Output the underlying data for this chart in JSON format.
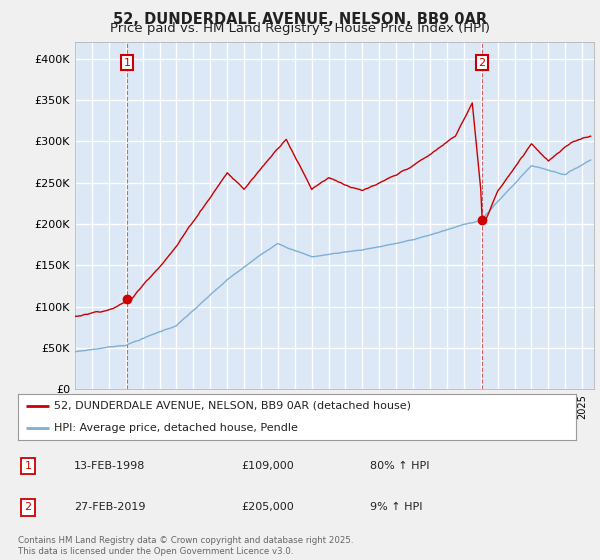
{
  "title": "52, DUNDERDALE AVENUE, NELSON, BB9 0AR",
  "subtitle": "Price paid vs. HM Land Registry's House Price Index (HPI)",
  "title_fontsize": 10.5,
  "subtitle_fontsize": 9.5,
  "ylim": [
    0,
    420000
  ],
  "yticks": [
    0,
    50000,
    100000,
    150000,
    200000,
    250000,
    300000,
    350000,
    400000
  ],
  "ytick_labels": [
    "£0",
    "£50K",
    "£100K",
    "£150K",
    "£200K",
    "£250K",
    "£300K",
    "£350K",
    "£400K"
  ],
  "line1_color": "#cc0000",
  "line2_color": "#7eb0d4",
  "legend1": "52, DUNDERDALE AVENUE, NELSON, BB9 0AR (detached house)",
  "legend2": "HPI: Average price, detached house, Pendle",
  "sale1_date": "13-FEB-1998",
  "sale1_price": "£109,000",
  "sale1_hpi": "80% ↑ HPI",
  "sale2_date": "27-FEB-2019",
  "sale2_price": "£205,000",
  "sale2_hpi": "9% ↑ HPI",
  "footer": "Contains HM Land Registry data © Crown copyright and database right 2025.\nThis data is licensed under the Open Government Licence v3.0.",
  "background_color": "#f0f0f0",
  "plot_background": "#dce8f5",
  "grid_color": "#ffffff"
}
